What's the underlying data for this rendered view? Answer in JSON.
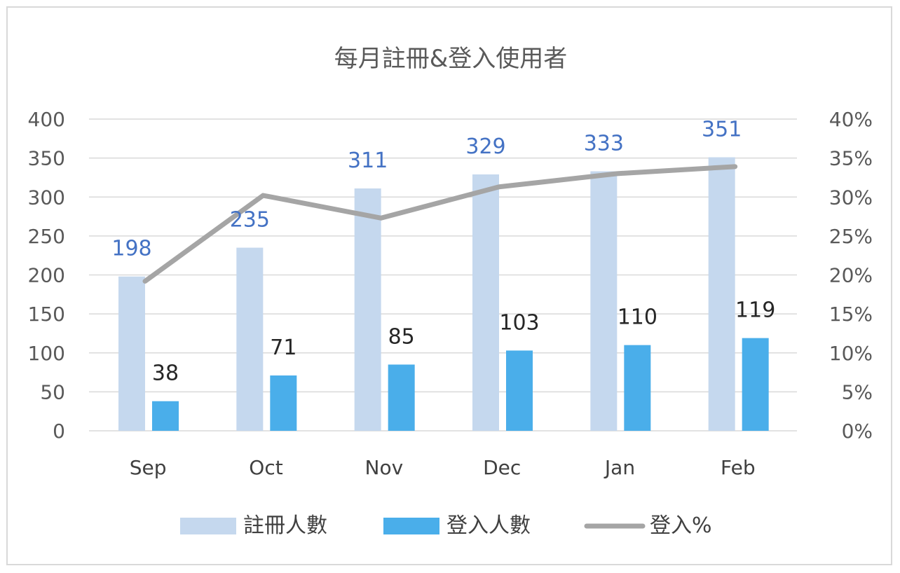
{
  "chart_data": {
    "type": "bar",
    "title": "每月註冊&登入使用者",
    "categories": [
      "Sep",
      "Oct",
      "Nov",
      "Dec",
      "Jan",
      "Feb"
    ],
    "series": [
      {
        "name": "註冊人數",
        "type": "bar",
        "axis": "left",
        "color": "#c5d8ee",
        "values": [
          198,
          235,
          311,
          329,
          333,
          351
        ],
        "label_color": "#4472c4"
      },
      {
        "name": "登入人數",
        "type": "bar",
        "axis": "left",
        "color": "#4aaeea",
        "values": [
          38,
          71,
          85,
          103,
          110,
          119
        ],
        "label_color": "#262626"
      },
      {
        "name": "登入%",
        "type": "line",
        "axis": "right",
        "color": "#a5a5a5",
        "values": [
          0.192,
          0.302,
          0.273,
          0.313,
          0.33,
          0.339
        ]
      }
    ],
    "y_left": {
      "min": 0,
      "max": 400,
      "ticks": [
        "0",
        "50",
        "100",
        "150",
        "200",
        "250",
        "300",
        "350",
        "400"
      ]
    },
    "y_right": {
      "min": 0,
      "max": 0.4,
      "ticks": [
        "0%",
        "5%",
        "10%",
        "15%",
        "20%",
        "25%",
        "30%",
        "35%",
        "40%"
      ]
    },
    "grid": true,
    "legend_position": "bottom"
  }
}
